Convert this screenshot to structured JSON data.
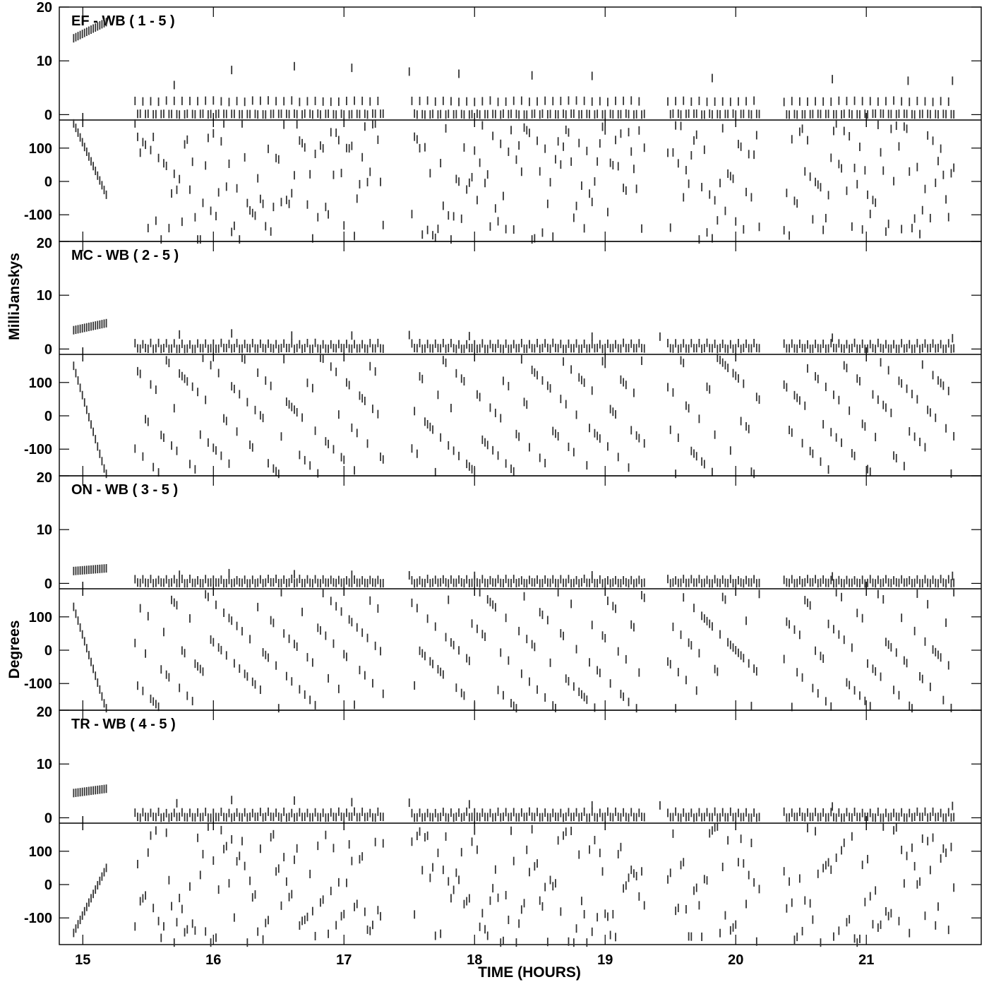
{
  "chart_data": {
    "type": "scatter",
    "xlabel": "TIME (HOURS)",
    "xlim": [
      14.82,
      21.88
    ],
    "xticks": [
      "15",
      "16",
      "17",
      "18",
      "19",
      "20",
      "21"
    ],
    "ylabels": {
      "amplitude": "MilliJanskys",
      "phase": "Degrees"
    },
    "amp_ylim": [
      -1,
      20
    ],
    "amp_ticks": [
      "20",
      "10",
      "0"
    ],
    "phase_ylim": [
      -180,
      180
    ],
    "phase_ticks": [
      "100",
      "0",
      "-100"
    ],
    "scans": [
      {
        "start": 14.93,
        "end": 15.18,
        "gap_minutes": 1.0
      },
      {
        "start": 15.4,
        "end": 17.3,
        "gap_minutes": 1.2
      },
      {
        "start": 17.52,
        "end": 19.3,
        "gap_minutes": 1.2
      },
      {
        "start": 19.48,
        "end": 20.2,
        "gap_minutes": 1.2
      },
      {
        "start": 20.37,
        "end": 21.68,
        "gap_minutes": 1.2
      }
    ],
    "panels": [
      {
        "title": "EF - WB ( 1 - 5 )",
        "cal_amp": [
          14.2,
          17.2
        ],
        "amp_levels": [
          0,
          2.5
        ],
        "amp_outliers": [
          [
            15.7,
            5.5
          ],
          [
            16.14,
            8.3
          ],
          [
            16.62,
            9
          ],
          [
            17.06,
            8.7
          ],
          [
            17.5,
            8
          ],
          [
            17.88,
            7.6
          ],
          [
            18.44,
            7.3
          ],
          [
            18.9,
            7.2
          ],
          [
            19.82,
            6.8
          ],
          [
            20.74,
            6.6
          ],
          [
            21.32,
            6.3
          ],
          [
            21.66,
            6.3
          ]
        ],
        "cal_phase": [
          175,
          -40
        ],
        "phase_style": "steep"
      },
      {
        "title": "MC - WB ( 2 - 5 )",
        "cal_amp": [
          3.5,
          4.8
        ],
        "amp_levels": [
          0,
          1
        ],
        "amp_outliers": [
          [
            15.74,
            2.7
          ],
          [
            16.14,
            2.9
          ],
          [
            16.6,
            2.5
          ],
          [
            17.06,
            2.5
          ],
          [
            17.5,
            2.6
          ],
          [
            17.96,
            2.4
          ],
          [
            18.9,
            2.3
          ],
          [
            19.42,
            2.3
          ],
          [
            20.74,
            2.1
          ],
          [
            21.66,
            2.0
          ]
        ],
        "cal_phase": [
          150,
          -180
        ],
        "phase_style": "random"
      },
      {
        "title": "ON - WB ( 3 - 5 )",
        "cal_amp": [
          2.3,
          2.8
        ],
        "amp_levels": [
          0,
          0.7
        ],
        "amp_outliers": [
          [
            15.74,
            1.6
          ],
          [
            16.12,
            1.9
          ],
          [
            16.62,
            1.7
          ],
          [
            17.06,
            1.6
          ],
          [
            17.5,
            1.5
          ],
          [
            18.0,
            1.4
          ],
          [
            18.9,
            1.5
          ],
          [
            20.74,
            1.3
          ],
          [
            21.66,
            1.4
          ]
        ],
        "cal_phase": [
          130,
          -180
        ],
        "phase_style": "random"
      },
      {
        "title": "TR - WB ( 4 - 5 )",
        "cal_amp": [
          4.6,
          5.4
        ],
        "amp_levels": [
          0,
          1
        ],
        "amp_outliers": [
          [
            15.72,
            2.7
          ],
          [
            16.14,
            3.3
          ],
          [
            16.62,
            3.2
          ],
          [
            17.06,
            2.9
          ],
          [
            17.5,
            2.8
          ],
          [
            17.96,
            2.5
          ],
          [
            18.9,
            2.3
          ],
          [
            19.42,
            2.3
          ],
          [
            20.74,
            2.1
          ],
          [
            21.66,
            2.2
          ]
        ],
        "cal_phase": [
          -145,
          50
        ],
        "phase_style": "rising"
      }
    ]
  }
}
